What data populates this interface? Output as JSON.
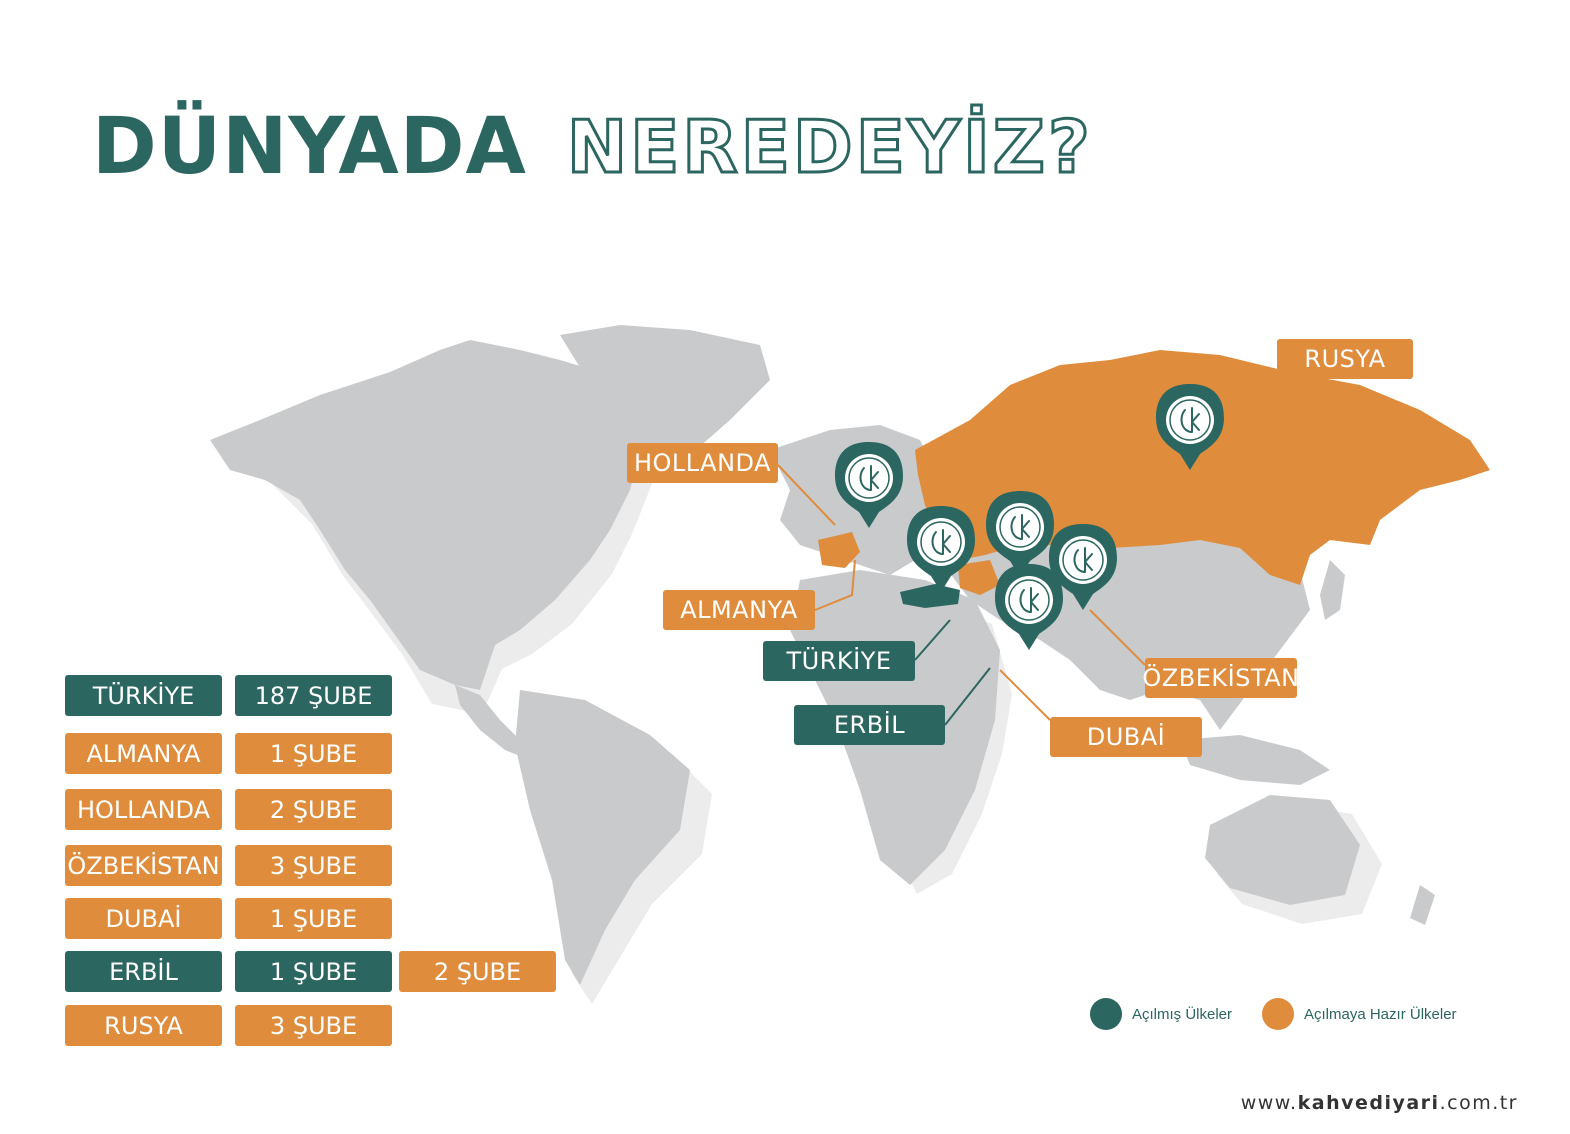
{
  "title": {
    "strong": "DÜNYADA",
    "outline": "NEREDEYİZ?"
  },
  "colors": {
    "opened": "#2b6660",
    "ready": "#df8d3c",
    "land": "#c9cacb"
  },
  "map_labels": {
    "rusya": "RUSYA",
    "hollanda": "HOLLANDA",
    "almanya": "ALMANYA",
    "turkiye": "TÜRKİYE",
    "erbil": "ERBİL",
    "ozbekistan": "ÖZBEKİSTAN",
    "dubai": "DUBAİ"
  },
  "branches": [
    {
      "country": "TÜRKİYE",
      "count": "187 ŞUBE",
      "status": "opened",
      "count_status": "opened"
    },
    {
      "country": "ALMANYA",
      "count": "1 ŞUBE",
      "status": "ready",
      "count_status": "ready"
    },
    {
      "country": "HOLLANDA",
      "count": "2 ŞUBE",
      "status": "ready",
      "count_status": "ready"
    },
    {
      "country": "ÖZBEKİSTAN",
      "count": "3 ŞUBE",
      "status": "ready",
      "count_status": "ready"
    },
    {
      "country": "DUBAİ",
      "count": "1 ŞUBE",
      "status": "ready",
      "count_status": "ready"
    },
    {
      "country": "ERBİL",
      "count": "1 ŞUBE",
      "status": "opened",
      "count_status": "opened",
      "extra": "2 ŞUBE",
      "extra_status": "ready"
    },
    {
      "country": "RUSYA",
      "count": "3 ŞUBE",
      "status": "ready",
      "count_status": "ready"
    }
  ],
  "legend": {
    "opened": "Açılmış Ülkeler",
    "ready": "Açılmaya Hazır Ülkeler"
  },
  "footer": {
    "prefix": "www.",
    "brand": "kahvediyari",
    "suffix": ".com.tr"
  }
}
